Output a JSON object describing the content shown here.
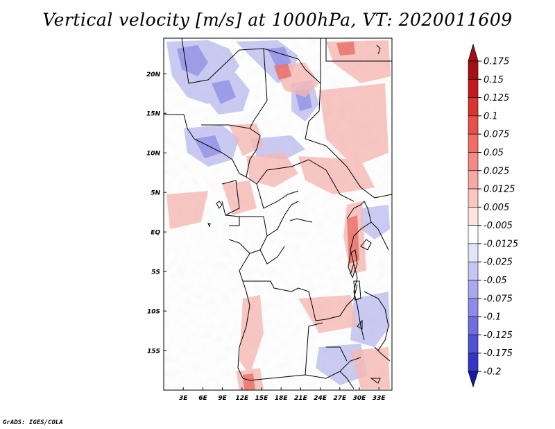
{
  "title": "Vertical velocity [m/s] at 1000hPa, VT: 2020011609",
  "footer": "GrADS: IGES/COLA",
  "map": {
    "lon_range": [
      0,
      35
    ],
    "lat_range": [
      -20,
      24.5
    ],
    "lat_ticks": [
      {
        "value": 20,
        "label": "20N"
      },
      {
        "value": 15,
        "label": "15N"
      },
      {
        "value": 10,
        "label": "10N"
      },
      {
        "value": 5,
        "label": "5N"
      },
      {
        "value": 0,
        "label": "EQ"
      },
      {
        "value": -5,
        "label": "5S"
      },
      {
        "value": -10,
        "label": "10S"
      },
      {
        "value": -15,
        "label": "15S"
      }
    ],
    "lon_ticks": [
      {
        "value": 3,
        "label": "3E"
      },
      {
        "value": 6,
        "label": "6E"
      },
      {
        "value": 9,
        "label": "9E"
      },
      {
        "value": 12,
        "label": "12E"
      },
      {
        "value": 15,
        "label": "15E"
      },
      {
        "value": 18,
        "label": "18E"
      },
      {
        "value": 21,
        "label": "21E"
      },
      {
        "value": 24,
        "label": "24E"
      },
      {
        "value": 27,
        "label": "27E"
      },
      {
        "value": 30,
        "label": "30E"
      },
      {
        "value": 33,
        "label": "33E"
      }
    ]
  },
  "colorbar": {
    "levels": [
      {
        "label": "0.175",
        "color": "#a50f15"
      },
      {
        "label": "0.15",
        "color": "#c31a1f"
      },
      {
        "label": "0.125",
        "color": "#d9352e"
      },
      {
        "label": "0.1",
        "color": "#e85146"
      },
      {
        "label": "0.075",
        "color": "#ef6f66"
      },
      {
        "label": "0.05",
        "color": "#f48a83"
      },
      {
        "label": "0.025",
        "color": "#f8a8a2"
      },
      {
        "label": "0.0125",
        "color": "#fbc6c2"
      },
      {
        "label": "0.005",
        "color": "#fde3e1"
      },
      {
        "label": "-0.005",
        "color": "#ffffff"
      },
      {
        "label": "-0.0125",
        "color": "#e3e3fb"
      },
      {
        "label": "-0.025",
        "color": "#c6c6f5"
      },
      {
        "label": "-0.05",
        "color": "#a9a9ef"
      },
      {
        "label": "-0.075",
        "color": "#8c8ce8"
      },
      {
        "label": "-0.1",
        "color": "#6e6ee0"
      },
      {
        "label": "-0.125",
        "color": "#5252d4"
      },
      {
        "label": "-0.175",
        "color": "#3636c6"
      },
      {
        "label": "-0.2",
        "color": "#1f1fb3"
      }
    ],
    "top_color": "#a50f15",
    "bottom_color": "#1a1aa8"
  }
}
